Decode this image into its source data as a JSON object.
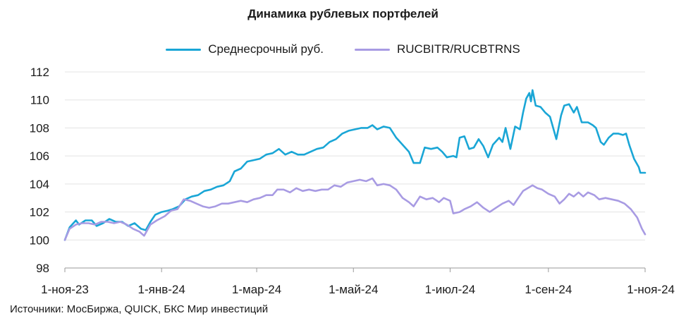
{
  "chart_data": {
    "type": "line",
    "title": "Динамика рублевых портфелей",
    "xlabel": "",
    "ylabel": "",
    "x_ticks": [
      "1-ноя-23",
      "1-янв-24",
      "1-мар-24",
      "1-май-24",
      "1-июл-24",
      "1-сен-24",
      "1-ноя-24"
    ],
    "y_ticks": [
      "98",
      "100",
      "102",
      "104",
      "106",
      "108",
      "110",
      "112"
    ],
    "ylim": [
      98,
      112
    ],
    "grid": "horizontal",
    "legend_position": "top-center",
    "series": [
      {
        "name": "Среднесрочный руб.",
        "color": "#1aa6d6",
        "points": [
          [
            "2023-11-01",
            100.0
          ],
          [
            "2023-11-04",
            100.9
          ],
          [
            "2023-11-08",
            101.4
          ],
          [
            "2023-11-10",
            101.1
          ],
          [
            "2023-11-14",
            101.4
          ],
          [
            "2023-11-18",
            101.4
          ],
          [
            "2023-11-21",
            101.0
          ],
          [
            "2023-11-25",
            101.2
          ],
          [
            "2023-11-29",
            101.5
          ],
          [
            "2023-12-03",
            101.3
          ],
          [
            "2023-12-07",
            101.3
          ],
          [
            "2023-12-11",
            101.0
          ],
          [
            "2023-12-15",
            101.2
          ],
          [
            "2023-12-19",
            100.8
          ],
          [
            "2023-12-22",
            100.7
          ],
          [
            "2023-12-25",
            101.3
          ],
          [
            "2023-12-28",
            101.8
          ],
          [
            "2024-01-01",
            102.0
          ],
          [
            "2024-01-05",
            102.1
          ],
          [
            "2024-01-08",
            102.2
          ],
          [
            "2024-01-12",
            102.4
          ],
          [
            "2024-01-16",
            102.9
          ],
          [
            "2024-01-20",
            103.1
          ],
          [
            "2024-01-24",
            103.2
          ],
          [
            "2024-01-28",
            103.5
          ],
          [
            "2024-02-01",
            103.6
          ],
          [
            "2024-02-05",
            103.8
          ],
          [
            "2024-02-09",
            103.9
          ],
          [
            "2024-02-13",
            104.2
          ],
          [
            "2024-02-16",
            104.9
          ],
          [
            "2024-02-20",
            105.1
          ],
          [
            "2024-02-24",
            105.6
          ],
          [
            "2024-02-28",
            105.7
          ],
          [
            "2024-03-03",
            105.8
          ],
          [
            "2024-03-07",
            106.1
          ],
          [
            "2024-03-11",
            106.2
          ],
          [
            "2024-03-15",
            106.5
          ],
          [
            "2024-03-19",
            106.1
          ],
          [
            "2024-03-23",
            106.3
          ],
          [
            "2024-03-27",
            106.1
          ],
          [
            "2024-03-31",
            106.1
          ],
          [
            "2024-04-04",
            106.3
          ],
          [
            "2024-04-08",
            106.5
          ],
          [
            "2024-04-12",
            106.6
          ],
          [
            "2024-04-16",
            107.0
          ],
          [
            "2024-04-20",
            107.2
          ],
          [
            "2024-04-24",
            107.6
          ],
          [
            "2024-04-28",
            107.8
          ],
          [
            "2024-05-02",
            107.9
          ],
          [
            "2024-05-06",
            108.0
          ],
          [
            "2024-05-10",
            108.0
          ],
          [
            "2024-05-13",
            108.2
          ],
          [
            "2024-05-16",
            107.9
          ],
          [
            "2024-05-20",
            108.1
          ],
          [
            "2024-05-24",
            108.0
          ],
          [
            "2024-05-28",
            107.3
          ],
          [
            "2024-06-01",
            106.8
          ],
          [
            "2024-06-05",
            106.3
          ],
          [
            "2024-06-08",
            105.5
          ],
          [
            "2024-06-12",
            105.5
          ],
          [
            "2024-06-15",
            106.6
          ],
          [
            "2024-06-19",
            106.5
          ],
          [
            "2024-06-23",
            106.6
          ],
          [
            "2024-06-26",
            106.3
          ],
          [
            "2024-06-29",
            105.9
          ],
          [
            "2024-07-03",
            106.0
          ],
          [
            "2024-07-05",
            105.9
          ],
          [
            "2024-07-07",
            107.3
          ],
          [
            "2024-07-10",
            107.4
          ],
          [
            "2024-07-13",
            106.5
          ],
          [
            "2024-07-16",
            106.6
          ],
          [
            "2024-07-19",
            107.2
          ],
          [
            "2024-07-22",
            106.7
          ],
          [
            "2024-07-25",
            105.9
          ],
          [
            "2024-07-28",
            106.8
          ],
          [
            "2024-08-01",
            107.3
          ],
          [
            "2024-08-03",
            107.0
          ],
          [
            "2024-08-05",
            108.0
          ],
          [
            "2024-08-08",
            106.5
          ],
          [
            "2024-08-11",
            108.1
          ],
          [
            "2024-08-14",
            107.9
          ],
          [
            "2024-08-16",
            109.1
          ],
          [
            "2024-08-18",
            110.1
          ],
          [
            "2024-08-20",
            110.5
          ],
          [
            "2024-08-21",
            109.9
          ],
          [
            "2024-08-22",
            110.7
          ],
          [
            "2024-08-24",
            109.6
          ],
          [
            "2024-08-27",
            109.5
          ],
          [
            "2024-08-30",
            109.1
          ],
          [
            "2024-09-02",
            108.8
          ],
          [
            "2024-09-04",
            108.0
          ],
          [
            "2024-09-06",
            107.2
          ],
          [
            "2024-09-09",
            108.9
          ],
          [
            "2024-09-11",
            109.6
          ],
          [
            "2024-09-14",
            109.7
          ],
          [
            "2024-09-17",
            109.1
          ],
          [
            "2024-09-19",
            109.5
          ],
          [
            "2024-09-22",
            108.4
          ],
          [
            "2024-09-26",
            108.4
          ],
          [
            "2024-09-29",
            108.2
          ],
          [
            "2024-10-01",
            108.0
          ],
          [
            "2024-10-04",
            107.0
          ],
          [
            "2024-10-06",
            106.8
          ],
          [
            "2024-10-09",
            107.3
          ],
          [
            "2024-10-12",
            107.6
          ],
          [
            "2024-10-15",
            107.6
          ],
          [
            "2024-10-18",
            107.5
          ],
          [
            "2024-10-20",
            107.6
          ],
          [
            "2024-10-22",
            106.8
          ],
          [
            "2024-10-25",
            105.8
          ],
          [
            "2024-10-28",
            105.2
          ],
          [
            "2024-10-29",
            104.8
          ],
          [
            "2024-11-01",
            104.8
          ]
        ]
      },
      {
        "name": "RUCBITR/RUCBTRNS",
        "color": "#a89be3",
        "points": [
          [
            "2023-11-01",
            100.0
          ],
          [
            "2023-11-04",
            100.8
          ],
          [
            "2023-11-08",
            101.1
          ],
          [
            "2023-11-12",
            101.2
          ],
          [
            "2023-11-16",
            101.2
          ],
          [
            "2023-11-20",
            101.1
          ],
          [
            "2023-11-24",
            101.3
          ],
          [
            "2023-11-28",
            101.3
          ],
          [
            "2023-12-02",
            101.2
          ],
          [
            "2023-12-06",
            101.3
          ],
          [
            "2023-12-10",
            101.1
          ],
          [
            "2023-12-14",
            100.8
          ],
          [
            "2023-12-18",
            100.6
          ],
          [
            "2023-12-21",
            100.3
          ],
          [
            "2023-12-25",
            101.1
          ],
          [
            "2023-12-29",
            101.4
          ],
          [
            "2024-01-03",
            101.7
          ],
          [
            "2024-01-07",
            102.1
          ],
          [
            "2024-01-11",
            102.2
          ],
          [
            "2024-01-15",
            102.9
          ],
          [
            "2024-01-19",
            102.8
          ],
          [
            "2024-01-23",
            102.6
          ],
          [
            "2024-01-27",
            102.4
          ],
          [
            "2024-01-31",
            102.3
          ],
          [
            "2024-02-04",
            102.4
          ],
          [
            "2024-02-08",
            102.6
          ],
          [
            "2024-02-12",
            102.6
          ],
          [
            "2024-02-16",
            102.7
          ],
          [
            "2024-02-20",
            102.8
          ],
          [
            "2024-02-24",
            102.7
          ],
          [
            "2024-02-28",
            102.9
          ],
          [
            "2024-03-03",
            103.0
          ],
          [
            "2024-03-07",
            103.2
          ],
          [
            "2024-03-11",
            103.2
          ],
          [
            "2024-03-14",
            103.6
          ],
          [
            "2024-03-18",
            103.6
          ],
          [
            "2024-03-22",
            103.4
          ],
          [
            "2024-03-26",
            103.7
          ],
          [
            "2024-03-30",
            103.5
          ],
          [
            "2024-04-03",
            103.6
          ],
          [
            "2024-04-07",
            103.5
          ],
          [
            "2024-04-11",
            103.6
          ],
          [
            "2024-04-15",
            103.6
          ],
          [
            "2024-04-19",
            103.9
          ],
          [
            "2024-04-23",
            103.8
          ],
          [
            "2024-04-27",
            104.1
          ],
          [
            "2024-05-01",
            104.2
          ],
          [
            "2024-05-05",
            104.3
          ],
          [
            "2024-05-09",
            104.2
          ],
          [
            "2024-05-13",
            104.4
          ],
          [
            "2024-05-16",
            103.9
          ],
          [
            "2024-05-20",
            104.0
          ],
          [
            "2024-05-24",
            103.9
          ],
          [
            "2024-05-28",
            103.6
          ],
          [
            "2024-06-01",
            103.0
          ],
          [
            "2024-06-05",
            102.7
          ],
          [
            "2024-06-08",
            102.4
          ],
          [
            "2024-06-12",
            103.1
          ],
          [
            "2024-06-16",
            102.9
          ],
          [
            "2024-06-20",
            103.0
          ],
          [
            "2024-06-24",
            102.7
          ],
          [
            "2024-06-27",
            103.0
          ],
          [
            "2024-07-01",
            102.8
          ],
          [
            "2024-07-03",
            101.9
          ],
          [
            "2024-07-07",
            102.0
          ],
          [
            "2024-07-10",
            102.2
          ],
          [
            "2024-07-14",
            102.4
          ],
          [
            "2024-07-18",
            102.7
          ],
          [
            "2024-07-22",
            102.3
          ],
          [
            "2024-07-26",
            102.0
          ],
          [
            "2024-07-30",
            102.3
          ],
          [
            "2024-08-03",
            102.6
          ],
          [
            "2024-08-07",
            102.8
          ],
          [
            "2024-08-10",
            102.5
          ],
          [
            "2024-08-13",
            103.0
          ],
          [
            "2024-08-16",
            103.5
          ],
          [
            "2024-08-19",
            103.7
          ],
          [
            "2024-08-22",
            103.9
          ],
          [
            "2024-08-25",
            103.7
          ],
          [
            "2024-08-28",
            103.6
          ],
          [
            "2024-09-01",
            103.3
          ],
          [
            "2024-09-05",
            103.1
          ],
          [
            "2024-09-08",
            102.6
          ],
          [
            "2024-09-11",
            102.9
          ],
          [
            "2024-09-14",
            103.3
          ],
          [
            "2024-09-17",
            103.1
          ],
          [
            "2024-09-20",
            103.4
          ],
          [
            "2024-09-23",
            103.1
          ],
          [
            "2024-09-26",
            103.4
          ],
          [
            "2024-09-30",
            103.2
          ],
          [
            "2024-10-03",
            102.9
          ],
          [
            "2024-10-07",
            103.0
          ],
          [
            "2024-10-11",
            102.9
          ],
          [
            "2024-10-15",
            102.8
          ],
          [
            "2024-10-19",
            102.6
          ],
          [
            "2024-10-23",
            102.2
          ],
          [
            "2024-10-27",
            101.6
          ],
          [
            "2024-10-30",
            100.8
          ],
          [
            "2024-11-01",
            100.4
          ]
        ]
      }
    ]
  },
  "source_note": "Источники: МосБиржа, QUICK, БКС Мир инвестиций"
}
